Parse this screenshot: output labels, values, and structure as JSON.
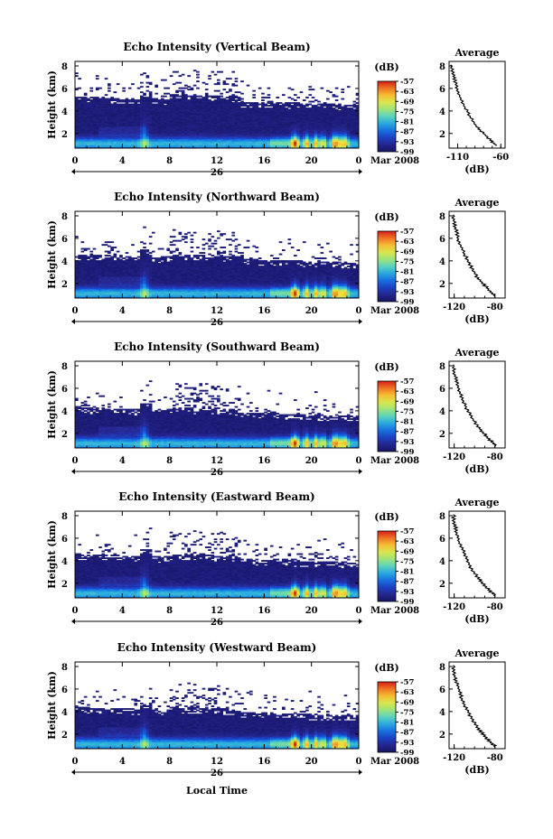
{
  "figure": {
    "xlabel": "Local Time",
    "cbar_unit": "(dB)",
    "avg_title": "Average",
    "avg_xlabel": "(dB)",
    "ylabel": "Height (km)",
    "date_label": "Mar 2008",
    "date_tick": "26"
  },
  "chart_data": [
    {
      "type": "heatmap",
      "title": "Echo Intensity (Vertical Beam)",
      "xlabel": "",
      "ylabel": "Height (km)",
      "x_ticks": [
        "0",
        "4",
        "8",
        "12",
        "16",
        "20",
        "0"
      ],
      "xlim": [
        0,
        24
      ],
      "y_ticks": [
        "2",
        "4",
        "6",
        "8"
      ],
      "ylim": [
        0.7,
        8.4
      ],
      "colorbar": {
        "label": "(dB)",
        "ticks": [
          "-57",
          "-63",
          "-69",
          "-75",
          "-81",
          "-87",
          "-93",
          "-99"
        ],
        "range": [
          -99,
          -57
        ]
      },
      "date": "Mar 2008",
      "date_tick": "26",
      "average_profile": {
        "title": "Average",
        "xlabel": "(dB)",
        "x_ticks": [
          "-110",
          "-60"
        ],
        "xlim": [
          -120,
          -55
        ],
        "y_ticks": [
          "2",
          "4",
          "6",
          "8"
        ],
        "ylim": [
          0.7,
          8.4
        ],
        "points": [
          [
            -65,
            0.9
          ],
          [
            -72,
            1.4
          ],
          [
            -80,
            2.0
          ],
          [
            -88,
            2.6
          ],
          [
            -95,
            3.4
          ],
          [
            -101,
            4.2
          ],
          [
            -106,
            5.0
          ],
          [
            -110,
            5.8
          ],
          [
            -113,
            6.6
          ],
          [
            -116,
            7.3
          ],
          [
            -118,
            8.1
          ]
        ]
      }
    },
    {
      "type": "heatmap",
      "title": "Echo Intensity (Northward Beam)",
      "xlabel": "",
      "ylabel": "Height (km)",
      "x_ticks": [
        "0",
        "4",
        "8",
        "12",
        "16",
        "20",
        "0"
      ],
      "xlim": [
        0,
        24
      ],
      "y_ticks": [
        "2",
        "4",
        "6",
        "8"
      ],
      "ylim": [
        0.7,
        8.4
      ],
      "colorbar": {
        "label": "(dB)",
        "ticks": [
          "-57",
          "-63",
          "-69",
          "-75",
          "-81",
          "-87",
          "-93",
          "-99"
        ],
        "range": [
          -99,
          -57
        ]
      },
      "date": "Mar 2008",
      "date_tick": "26",
      "average_profile": {
        "title": "Average",
        "xlabel": "(dB)",
        "x_ticks": [
          "-120",
          "-80"
        ],
        "xlim": [
          -125,
          -70
        ],
        "y_ticks": [
          "2",
          "4",
          "6",
          "8"
        ],
        "ylim": [
          0.7,
          8.4
        ],
        "points": [
          [
            -80,
            0.9
          ],
          [
            -86,
            1.4
          ],
          [
            -92,
            2.0
          ],
          [
            -98,
            2.6
          ],
          [
            -103,
            3.4
          ],
          [
            -108,
            4.2
          ],
          [
            -112,
            5.0
          ],
          [
            -116,
            5.8
          ],
          [
            -118,
            6.6
          ],
          [
            -120,
            7.3
          ],
          [
            -121,
            8.1
          ]
        ]
      }
    },
    {
      "type": "heatmap",
      "title": "Echo Intensity (Southward Beam)",
      "xlabel": "",
      "ylabel": "Height (km)",
      "x_ticks": [
        "0",
        "4",
        "8",
        "12",
        "16",
        "20",
        "0"
      ],
      "xlim": [
        0,
        24
      ],
      "y_ticks": [
        "2",
        "4",
        "6",
        "8"
      ],
      "ylim": [
        0.7,
        8.4
      ],
      "colorbar": {
        "label": "(dB)",
        "ticks": [
          "-57",
          "-63",
          "-69",
          "-75",
          "-81",
          "-87",
          "-93",
          "-99"
        ],
        "range": [
          -99,
          -57
        ]
      },
      "date": "Mar 2008",
      "date_tick": "26",
      "average_profile": {
        "title": "Average",
        "xlabel": "(dB)",
        "x_ticks": [
          "-120",
          "-80"
        ],
        "xlim": [
          -125,
          -70
        ],
        "y_ticks": [
          "2",
          "4",
          "6",
          "8"
        ],
        "ylim": [
          0.7,
          8.4
        ],
        "points": [
          [
            -79,
            0.9
          ],
          [
            -85,
            1.4
          ],
          [
            -91,
            2.0
          ],
          [
            -97,
            2.6
          ],
          [
            -103,
            3.4
          ],
          [
            -108,
            4.2
          ],
          [
            -112,
            5.0
          ],
          [
            -115,
            5.8
          ],
          [
            -118,
            6.6
          ],
          [
            -120,
            7.3
          ],
          [
            -121,
            8.1
          ]
        ]
      }
    },
    {
      "type": "heatmap",
      "title": "Echo Intensity (Eastward Beam)",
      "xlabel": "",
      "ylabel": "Height (km)",
      "x_ticks": [
        "0",
        "4",
        "8",
        "12",
        "16",
        "20",
        "0"
      ],
      "xlim": [
        0,
        24
      ],
      "y_ticks": [
        "2",
        "4",
        "6",
        "8"
      ],
      "ylim": [
        0.7,
        8.4
      ],
      "colorbar": {
        "label": "(dB)",
        "ticks": [
          "-57",
          "-63",
          "-69",
          "-75",
          "-81",
          "-87",
          "-93",
          "-99"
        ],
        "range": [
          -99,
          -57
        ]
      },
      "date": "Mar 2008",
      "date_tick": "26",
      "average_profile": {
        "title": "Average",
        "xlabel": "(dB)",
        "x_ticks": [
          "-120",
          "-80"
        ],
        "xlim": [
          -125,
          -70
        ],
        "y_ticks": [
          "2",
          "4",
          "6",
          "8"
        ],
        "ylim": [
          0.7,
          8.4
        ],
        "points": [
          [
            -80,
            0.9
          ],
          [
            -86,
            1.4
          ],
          [
            -92,
            2.0
          ],
          [
            -98,
            2.6
          ],
          [
            -104,
            3.4
          ],
          [
            -108,
            4.2
          ],
          [
            -112,
            5.0
          ],
          [
            -116,
            5.8
          ],
          [
            -118,
            6.6
          ],
          [
            -120,
            7.3
          ],
          [
            -121,
            8.1
          ]
        ]
      }
    },
    {
      "type": "heatmap",
      "title": "Echo Intensity (Westward Beam)",
      "xlabel": "Local Time",
      "ylabel": "Height (km)",
      "x_ticks": [
        "0",
        "4",
        "8",
        "12",
        "16",
        "20",
        "0"
      ],
      "xlim": [
        0,
        24
      ],
      "y_ticks": [
        "2",
        "4",
        "6",
        "8"
      ],
      "ylim": [
        0.7,
        8.4
      ],
      "colorbar": {
        "label": "(dB)",
        "ticks": [
          "-57",
          "-63",
          "-69",
          "-75",
          "-81",
          "-87",
          "-93",
          "-99"
        ],
        "range": [
          -99,
          -57
        ]
      },
      "date": "Mar 2008",
      "date_tick": "26",
      "average_profile": {
        "title": "Average",
        "xlabel": "(dB)",
        "x_ticks": [
          "-120",
          "-80"
        ],
        "xlim": [
          -125,
          -70
        ],
        "y_ticks": [
          "2",
          "4",
          "6",
          "8"
        ],
        "ylim": [
          0.7,
          8.4
        ],
        "points": [
          [
            -80,
            0.9
          ],
          [
            -86,
            1.4
          ],
          [
            -92,
            2.0
          ],
          [
            -98,
            2.6
          ],
          [
            -103,
            3.4
          ],
          [
            -108,
            4.2
          ],
          [
            -112,
            5.0
          ],
          [
            -115,
            5.8
          ],
          [
            -118,
            6.6
          ],
          [
            -120,
            7.3
          ],
          [
            -121,
            8.1
          ]
        ]
      }
    }
  ]
}
